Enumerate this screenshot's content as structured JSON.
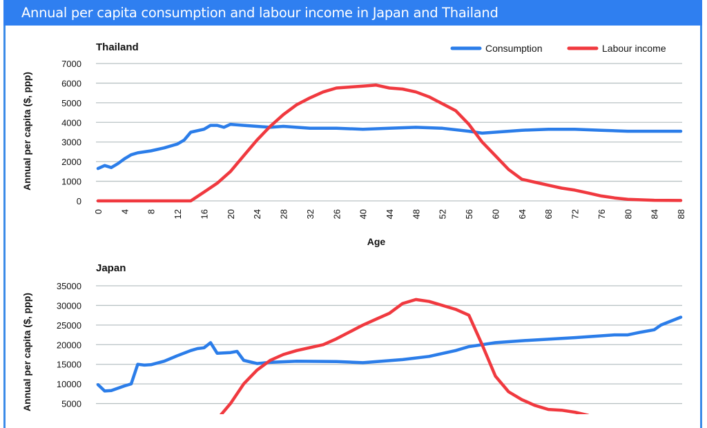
{
  "title": "Annual per capita consumption and labour income in Japan and Thailand",
  "colors": {
    "titlebar": "#2f7ff0",
    "consumption": "#2b7de9",
    "labour_income": "#f0393f",
    "grid": "#b9c2c4"
  },
  "legend": [
    {
      "label": "Consumption",
      "color": "#2b7de9"
    },
    {
      "label": "Labour income",
      "color": "#f0393f"
    }
  ],
  "chart_data": [
    {
      "type": "line",
      "title": "Thailand",
      "xlabel": "Age",
      "ylabel": "Annual per capita ($, ppp)",
      "ylim": [
        0,
        7000
      ],
      "yticks": [
        0,
        1000,
        2000,
        3000,
        4000,
        5000,
        6000,
        7000
      ],
      "xtick_labels": [
        "0",
        "4",
        "8",
        "12",
        "16",
        "20",
        "24",
        "28",
        "32",
        "26",
        "40",
        "44",
        "48",
        "52",
        "56",
        "60",
        "64",
        "68",
        "72",
        "76",
        "80",
        "84",
        "88"
      ],
      "xlim": [
        0,
        88
      ],
      "grid": true,
      "legend_position": "top-right",
      "series": [
        {
          "name": "Consumption",
          "x": [
            0,
            1,
            2,
            3,
            4,
            5,
            6,
            8,
            10,
            12,
            13,
            14,
            16,
            17,
            18,
            19,
            20,
            22,
            24,
            26,
            28,
            30,
            32,
            36,
            40,
            44,
            48,
            52,
            56,
            58,
            60,
            64,
            68,
            72,
            76,
            80,
            84,
            88
          ],
          "values": [
            1650,
            1800,
            1700,
            1900,
            2150,
            2350,
            2450,
            2550,
            2700,
            2900,
            3100,
            3500,
            3650,
            3850,
            3850,
            3750,
            3900,
            3850,
            3800,
            3750,
            3800,
            3750,
            3700,
            3700,
            3650,
            3700,
            3750,
            3700,
            3550,
            3450,
            3500,
            3600,
            3650,
            3650,
            3600,
            3550,
            3550,
            3550
          ]
        },
        {
          "name": "Labour income",
          "x": [
            0,
            14,
            16,
            18,
            20,
            22,
            24,
            26,
            28,
            30,
            32,
            34,
            36,
            38,
            40,
            42,
            44,
            46,
            48,
            50,
            52,
            54,
            56,
            58,
            60,
            62,
            64,
            66,
            68,
            70,
            72,
            74,
            76,
            78,
            80,
            84,
            88
          ],
          "values": [
            0,
            0,
            450,
            900,
            1500,
            2300,
            3100,
            3800,
            4400,
            4900,
            5250,
            5550,
            5750,
            5800,
            5850,
            5900,
            5750,
            5700,
            5550,
            5300,
            4950,
            4600,
            3900,
            3000,
            2300,
            1600,
            1100,
            950,
            800,
            650,
            550,
            400,
            250,
            150,
            80,
            30,
            20
          ]
        }
      ]
    },
    {
      "type": "line",
      "title": "Japan",
      "ylabel": "Annual per capita ($, ppp)",
      "ylim": [
        0,
        35000
      ],
      "yticks": [
        5000,
        10000,
        15000,
        20000,
        25000,
        30000,
        35000
      ],
      "xlim": [
        0,
        88
      ],
      "grid": true,
      "series": [
        {
          "name": "Consumption",
          "x": [
            0,
            1,
            2,
            4,
            5,
            6,
            7,
            8,
            10,
            12,
            14,
            15,
            16,
            17,
            18,
            20,
            21,
            22,
            24,
            26,
            30,
            36,
            40,
            46,
            50,
            54,
            56,
            58,
            60,
            64,
            72,
            78,
            80,
            82,
            84,
            85,
            88
          ],
          "values": [
            9800,
            8200,
            8300,
            9500,
            10000,
            15000,
            14800,
            14900,
            15800,
            17200,
            18500,
            19000,
            19200,
            20500,
            17800,
            18000,
            18300,
            16000,
            15200,
            15500,
            15800,
            15700,
            15400,
            16200,
            17000,
            18500,
            19500,
            20000,
            20500,
            21000,
            21800,
            22500,
            22500,
            23200,
            23800,
            25000,
            27000
          ]
        },
        {
          "name": "Labour income",
          "x": [
            18,
            20,
            22,
            24,
            26,
            28,
            30,
            34,
            36,
            40,
            42,
            44,
            46,
            48,
            50,
            52,
            54,
            56,
            58,
            60,
            62,
            64,
            66,
            68,
            70,
            72,
            74
          ],
          "values": [
            1000,
            5000,
            10000,
            13500,
            16000,
            17500,
            18500,
            20000,
            21500,
            25000,
            26500,
            28000,
            30500,
            31500,
            31000,
            30000,
            29000,
            27500,
            20000,
            12000,
            8000,
            6000,
            4500,
            3500,
            3300,
            2800,
            2000
          ]
        }
      ]
    }
  ]
}
